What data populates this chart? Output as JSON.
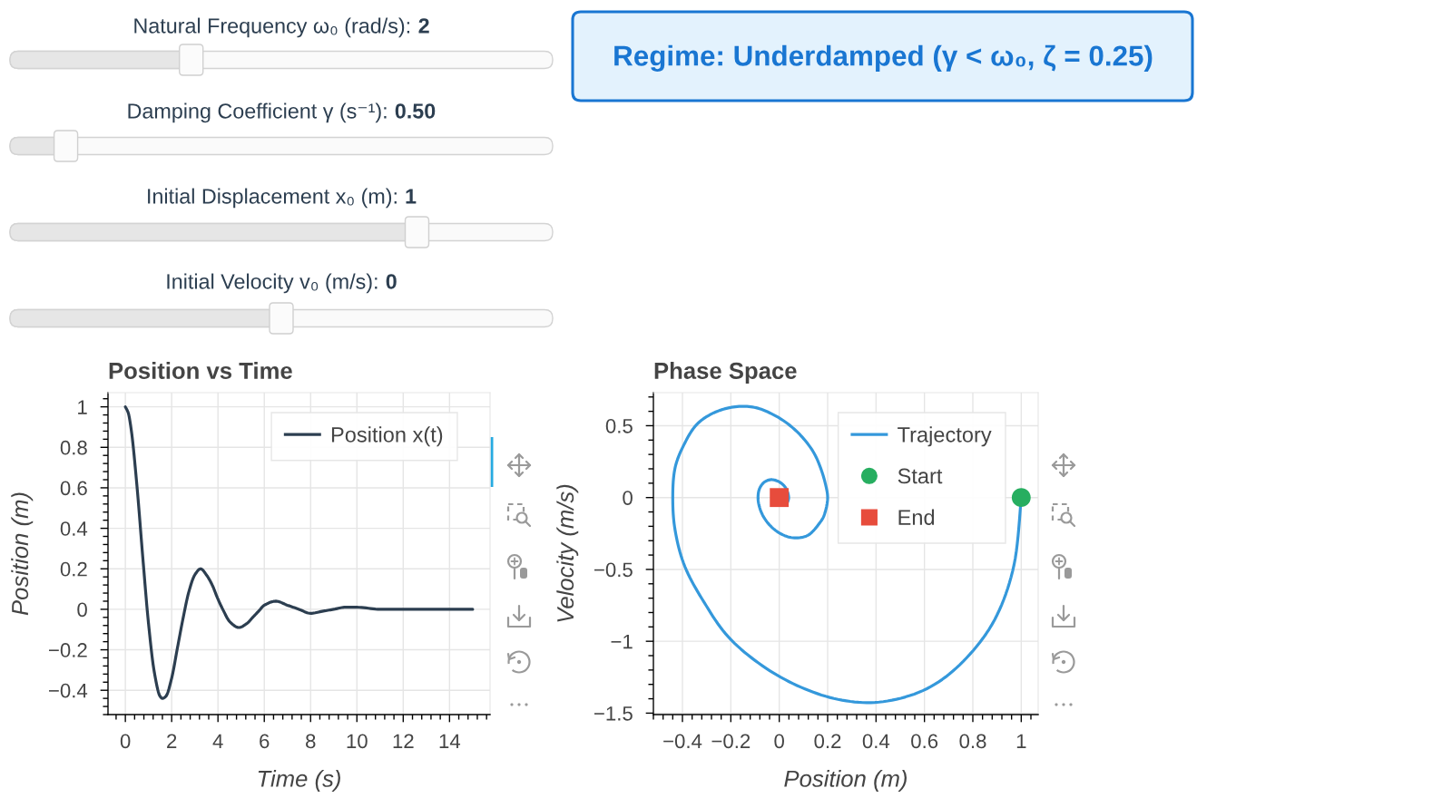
{
  "chart_data": [
    {
      "type": "other",
      "annotations": [
        "Natural Frequency ω₀ (rad/s):",
        "2",
        "Damping Coefficient γ (s⁻¹):",
        "0.50",
        "Initial Displacement x₀ (m):",
        "1",
        "Initial Velocity v₀ (m/s):",
        "0",
        "Regime: Underdamped (γ < ω₀, ζ = 0.25)"
      ]
    },
    {
      "type": "line",
      "title": "Position vs Time",
      "xlabel": "Time (s)",
      "ylabel": "Position (m)",
      "x": [
        0,
        0.125,
        0.25,
        0.5,
        0.75,
        1,
        1.25,
        1.5,
        1.6,
        1.75,
        2,
        2.25,
        2.5,
        2.75,
        3,
        3.25,
        3.5,
        3.75,
        4,
        4.25,
        4.5,
        4.9,
        5.25,
        5.5,
        5.75,
        6,
        6.5,
        7,
        7.5,
        8,
        8.5,
        9,
        9.5,
        10,
        11,
        12,
        13,
        14,
        15
      ],
      "series": [
        {
          "name": "Position x(t)",
          "color": "#2c3e50",
          "values": [
            1,
            0.97,
            0.89,
            0.61,
            0.26,
            -0.07,
            -0.31,
            -0.43,
            -0.44,
            -0.43,
            -0.34,
            -0.19,
            -0.04,
            0.09,
            0.17,
            0.2,
            0.17,
            0.12,
            0.05,
            -0.01,
            -0.06,
            -0.09,
            -0.07,
            -0.04,
            -0.01,
            0.02,
            0.04,
            0.02,
            0,
            -0.02,
            -0.01,
            0,
            0.01,
            0.01,
            0,
            0,
            0,
            0,
            0
          ]
        }
      ],
      "xlim": [
        -0.75,
        15.75
      ],
      "ylim": [
        -0.52,
        1.07
      ],
      "xticks": [
        0,
        2,
        4,
        6,
        8,
        10,
        12,
        14
      ],
      "yticks": [
        {
          "value": -0.4,
          "label": "−0.4"
        },
        {
          "value": -0.2,
          "label": "−0.2"
        },
        0,
        0.2,
        0.4,
        0.6,
        0.8,
        1
      ],
      "grid": true,
      "legend": "top right"
    },
    {
      "type": "line",
      "title": "Phase Space",
      "xlabel": "Position (m)",
      "ylabel": "Velocity (m/s)",
      "series": [
        {
          "name": "Trajectory",
          "color": "#3498db",
          "x": [
            1,
            0.97,
            0.89,
            0.76,
            0.61,
            0.43,
            0.26,
            0.09,
            -0.07,
            -0.21,
            -0.31,
            -0.39,
            -0.43,
            -0.44,
            -0.43,
            -0.39,
            -0.34,
            -0.27,
            -0.19,
            -0.11,
            -0.04,
            0.03,
            0.09,
            0.14,
            0.17,
            0.19,
            0.2,
            0.19,
            0.17,
            0.118,
            0.049,
            -0.015,
            -0.062,
            -0.085,
            -0.085,
            -0.066,
            -0.037,
            -0.007,
            0.019,
            0.034,
            0.039,
            0.034
          ],
          "values": [
            0,
            -0.47,
            -0.85,
            -1.14,
            -1.33,
            -1.42,
            -1.41,
            -1.32,
            -1.17,
            -0.97,
            -0.73,
            -0.48,
            -0.23,
            0,
            0.21,
            0.38,
            0.51,
            0.59,
            0.63,
            0.63,
            0.59,
            0.52,
            0.43,
            0.32,
            0.21,
            0.1,
            0,
            -0.1,
            -0.17,
            -0.263,
            -0.278,
            -0.229,
            -0.142,
            -0.043,
            0.043,
            0.101,
            0.124,
            0.115,
            0.084,
            0.041,
            -0.002,
            -0.034
          ]
        },
        {
          "name": "Start",
          "type": "scatter",
          "marker": "circle",
          "color": "#27ae60",
          "x": [
            1
          ],
          "values": [
            0
          ]
        },
        {
          "name": "End",
          "type": "scatter",
          "marker": "square",
          "color": "#e74c3c",
          "x": [
            0
          ],
          "values": [
            0
          ]
        }
      ],
      "xlim": [
        -0.52,
        1.07
      ],
      "ylim": [
        -1.51,
        0.73
      ],
      "xticks": [
        {
          "value": -0.4,
          "label": "−0.4"
        },
        {
          "value": -0.2,
          "label": "−0.2"
        },
        0,
        0.2,
        0.4,
        0.6,
        0.8,
        1
      ],
      "yticks": [
        {
          "value": -1.5,
          "label": "−1.5"
        },
        {
          "value": -1,
          "label": "−1"
        },
        {
          "value": -0.5,
          "label": "−0.5"
        },
        0,
        0.5
      ],
      "grid": true,
      "legend": "top right"
    }
  ]
}
